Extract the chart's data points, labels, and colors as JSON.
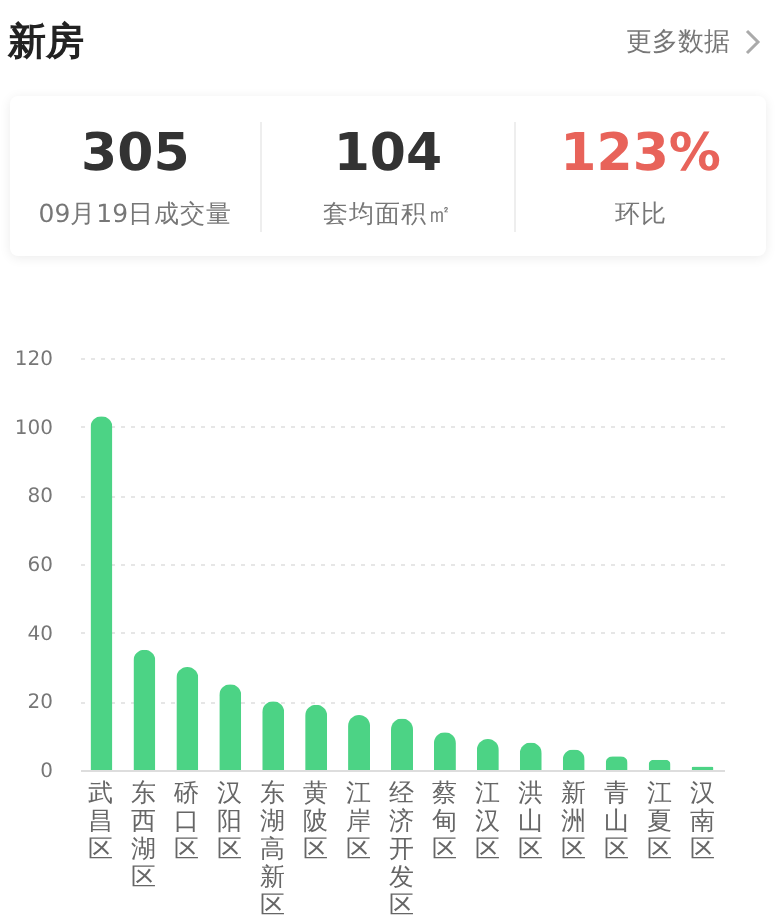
{
  "chart_data": [
    {
      "type": "other",
      "title": "新房",
      "annotations": [
        "更多数据"
      ],
      "categories": [
        "09月19日成交量",
        "套均面积㎡",
        "环比"
      ],
      "value_labels": [
        "305",
        "104",
        "123%"
      ],
      "colors": [
        "#333333",
        "#333333",
        "#e8635a"
      ]
    },
    {
      "type": "bar",
      "categories": [
        "武昌区",
        "东西湖区",
        "硚口区",
        "汉阳区",
        "东湖高新区",
        "黄陂区",
        "江岸区",
        "经济开发区",
        "蔡甸区",
        "江汉区",
        "洪山区",
        "新洲区",
        "青山区",
        "江夏区",
        "汉南区"
      ],
      "values": [
        103,
        35,
        30,
        25,
        20,
        19,
        16,
        15,
        11,
        9,
        8,
        6,
        4,
        3,
        1
      ],
      "color": "#4cd385",
      "ylim": [
        0,
        120
      ],
      "yticks": [
        0,
        20,
        40,
        60,
        80,
        100,
        120
      ],
      "grid": "y"
    }
  ]
}
